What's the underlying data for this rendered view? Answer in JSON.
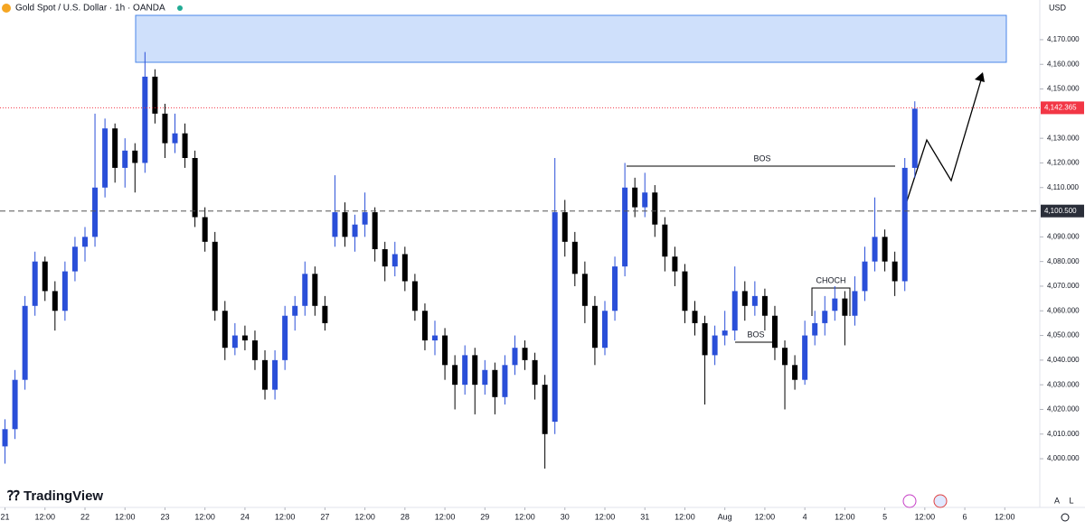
{
  "chart_data": {
    "type": "candlestick",
    "title": "Gold Spot / U.S. Dollar · 1h · OANDA",
    "currency": "USD",
    "up_color": "#2a4fd8",
    "down_color": "#000000",
    "x": [
      0,
      3,
      6,
      9,
      12,
      15,
      18,
      21,
      24,
      27,
      30,
      33,
      36,
      39,
      42,
      45,
      48,
      51,
      54,
      57,
      60,
      63,
      66,
      69,
      72,
      75,
      78,
      81,
      84,
      87,
      90,
      93,
      96,
      99,
      102,
      105,
      108,
      111,
      114,
      117,
      120,
      123,
      126,
      129,
      132,
      135,
      138,
      141,
      144,
      147,
      150,
      153,
      156,
      159,
      162,
      165,
      168,
      171,
      174,
      177,
      180,
      183,
      186,
      189,
      192,
      195,
      198,
      201,
      204,
      207,
      210,
      213,
      216,
      219,
      222,
      225,
      228,
      231,
      234,
      237,
      240,
      243,
      246,
      249,
      252,
      255,
      258,
      261,
      264,
      267,
      270,
      273
    ],
    "candles": [
      [
        4005,
        4016,
        3998,
        4012
      ],
      [
        4012,
        4036,
        4008,
        4032
      ],
      [
        4032,
        4066,
        4028,
        4062
      ],
      [
        4062,
        4084,
        4058,
        4080
      ],
      [
        4080,
        4082,
        4064,
        4068
      ],
      [
        4068,
        4072,
        4052,
        4060
      ],
      [
        4060,
        4080,
        4056,
        4076
      ],
      [
        4076,
        4090,
        4072,
        4086
      ],
      [
        4086,
        4094,
        4080,
        4090
      ],
      [
        4090,
        4140,
        4086,
        4110
      ],
      [
        4110,
        4138,
        4106,
        4134
      ],
      [
        4134,
        4136,
        4112,
        4118
      ],
      [
        4118,
        4130,
        4110,
        4125
      ],
      [
        4125,
        4128,
        4108,
        4120
      ],
      [
        4120,
        4165,
        4116,
        4155
      ],
      [
        4155,
        4158,
        4136,
        4140
      ],
      [
        4140,
        4144,
        4122,
        4128
      ],
      [
        4128,
        4140,
        4124,
        4132
      ],
      [
        4132,
        4136,
        4118,
        4122
      ],
      [
        4122,
        4125,
        4094,
        4098
      ],
      [
        4098,
        4102,
        4084,
        4088
      ],
      [
        4088,
        4092,
        4056,
        4060
      ],
      [
        4060,
        4064,
        4040,
        4045
      ],
      [
        4045,
        4055,
        4042,
        4050
      ],
      [
        4050,
        4054,
        4044,
        4048
      ],
      [
        4048,
        4052,
        4036,
        4040
      ],
      [
        4040,
        4044,
        4024,
        4028
      ],
      [
        4028,
        4044,
        4024,
        4040
      ],
      [
        4040,
        4062,
        4036,
        4058
      ],
      [
        4058,
        4066,
        4052,
        4062
      ],
      [
        4062,
        4080,
        4058,
        4075
      ],
      [
        4075,
        4078,
        4058,
        4062
      ],
      [
        4062,
        4066,
        4052,
        4055
      ],
      [
        4090,
        4115,
        4086,
        4100
      ],
      [
        4100,
        4104,
        4086,
        4090
      ],
      [
        4090,
        4099,
        4084,
        4095
      ],
      [
        4095,
        4108,
        4090,
        4100
      ],
      [
        4100,
        4102,
        4080,
        4085
      ],
      [
        4085,
        4088,
        4072,
        4078
      ],
      [
        4078,
        4088,
        4074,
        4083
      ],
      [
        4083,
        4086,
        4068,
        4072
      ],
      [
        4072,
        4075,
        4056,
        4060
      ],
      [
        4060,
        4063,
        4044,
        4048
      ],
      [
        4048,
        4056,
        4042,
        4050
      ],
      [
        4050,
        4053,
        4032,
        4038
      ],
      [
        4038,
        4042,
        4020,
        4030
      ],
      [
        4030,
        4046,
        4026,
        4042
      ],
      [
        4042,
        4045,
        4018,
        4030
      ],
      [
        4030,
        4040,
        4026,
        4036
      ],
      [
        4036,
        4039,
        4018,
        4025
      ],
      [
        4025,
        4042,
        4022,
        4038
      ],
      [
        4038,
        4050,
        4034,
        4045
      ],
      [
        4045,
        4048,
        4036,
        4040
      ],
      [
        4040,
        4043,
        4024,
        4030
      ],
      [
        4030,
        4034,
        3996,
        4010
      ],
      [
        4015,
        4122,
        4010,
        4100
      ],
      [
        4100,
        4105,
        4082,
        4088
      ],
      [
        4088,
        4092,
        4070,
        4075
      ],
      [
        4075,
        4080,
        4055,
        4062
      ],
      [
        4062,
        4066,
        4038,
        4045
      ],
      [
        4045,
        4064,
        4042,
        4060
      ],
      [
        4060,
        4082,
        4056,
        4078
      ],
      [
        4078,
        4120,
        4074,
        4110
      ],
      [
        4110,
        4114,
        4098,
        4102
      ],
      [
        4102,
        4116,
        4098,
        4108
      ],
      [
        4108,
        4111,
        4090,
        4095
      ],
      [
        4095,
        4098,
        4076,
        4082
      ],
      [
        4082,
        4086,
        4070,
        4076
      ],
      [
        4076,
        4079,
        4055,
        4060
      ],
      [
        4060,
        4064,
        4050,
        4055
      ],
      [
        4055,
        4058,
        4022,
        4042
      ],
      [
        4042,
        4054,
        4038,
        4050
      ],
      [
        4050,
        4060,
        4046,
        4052
      ],
      [
        4052,
        4078,
        4048,
        4068
      ],
      [
        4068,
        4072,
        4056,
        4062
      ],
      [
        4062,
        4072,
        4058,
        4066
      ],
      [
        4066,
        4069,
        4052,
        4058
      ],
      [
        4058,
        4062,
        4040,
        4045
      ],
      [
        4045,
        4048,
        4020,
        4038
      ],
      [
        4038,
        4042,
        4028,
        4032
      ],
      [
        4032,
        4056,
        4030,
        4050
      ],
      [
        4050,
        4060,
        4046,
        4055
      ],
      [
        4055,
        4066,
        4050,
        4060
      ],
      [
        4060,
        4070,
        4056,
        4065
      ],
      [
        4065,
        4068,
        4046,
        4058
      ],
      [
        4058,
        4074,
        4054,
        4068
      ],
      [
        4068,
        4086,
        4064,
        4080
      ],
      [
        4080,
        4106,
        4076,
        4090
      ],
      [
        4090,
        4093,
        4076,
        4080
      ],
      [
        4080,
        4084,
        4066,
        4072
      ],
      [
        4072,
        4122,
        4068,
        4118
      ],
      [
        4118,
        4145,
        4114,
        4142
      ]
    ],
    "xlim": [
      -1.5,
      310.5
    ],
    "xticks": [
      {
        "value": 0,
        "label": "21"
      },
      {
        "value": 12,
        "label": "12:00"
      },
      {
        "value": 24,
        "label": "22"
      },
      {
        "value": 36,
        "label": "12:00"
      },
      {
        "value": 48,
        "label": "23"
      },
      {
        "value": 60,
        "label": "12:00"
      },
      {
        "value": 72,
        "label": "24"
      },
      {
        "value": 84,
        "label": "12:00"
      },
      {
        "value": 96,
        "label": "27"
      },
      {
        "value": 108,
        "label": "12:00"
      },
      {
        "value": 120,
        "label": "28"
      },
      {
        "value": 132,
        "label": "12:00"
      },
      {
        "value": 144,
        "label": "29"
      },
      {
        "value": 156,
        "label": "12:00"
      },
      {
        "value": 168,
        "label": "30"
      },
      {
        "value": 180,
        "label": "12:00"
      },
      {
        "value": 192,
        "label": "31"
      },
      {
        "value": 204,
        "label": "12:00"
      },
      {
        "value": 216,
        "label": "Aug"
      },
      {
        "value": 228,
        "label": "12:00"
      },
      {
        "value": 240,
        "label": "4"
      },
      {
        "value": 252,
        "label": "12:00"
      },
      {
        "value": 264,
        "label": "5"
      },
      {
        "value": 276,
        "label": "12:00"
      },
      {
        "value": 288,
        "label": "6"
      },
      {
        "value": 300,
        "label": "12:00"
      }
    ],
    "ylim": [
      3988.3,
      4186.1
    ],
    "yticks": [
      {
        "value": 4000,
        "label": "4,000.000"
      },
      {
        "value": 4010,
        "label": "4,010.000"
      },
      {
        "value": 4020,
        "label": "4,020.000"
      },
      {
        "value": 4030,
        "label": "4,030.000"
      },
      {
        "value": 4040,
        "label": "4,040.000"
      },
      {
        "value": 4050,
        "label": "4,050.000"
      },
      {
        "value": 4060,
        "label": "4,060.000"
      },
      {
        "value": 4070,
        "label": "4,070.000"
      },
      {
        "value": 4080,
        "label": "4,080.000"
      },
      {
        "value": 4090,
        "label": "4,090.000"
      },
      {
        "value": 4110,
        "label": "4,110.000"
      },
      {
        "value": 4120,
        "label": "4,120.000"
      },
      {
        "value": 4130,
        "label": "4,130.000"
      },
      {
        "value": 4150,
        "label": "4,150.000"
      },
      {
        "value": 4160,
        "label": "4,160.000"
      },
      {
        "value": 4170,
        "label": "4,170.000"
      }
    ],
    "last_price": {
      "value": 4142.365,
      "label": "4,142.365"
    },
    "level": {
      "value": 4100.5,
      "label": "4,100.500"
    },
    "annotations": [
      "BOS",
      "BOS",
      "CHOCH"
    ]
  },
  "brand": "TradingView",
  "scale_buttons": [
    "A",
    "L"
  ]
}
